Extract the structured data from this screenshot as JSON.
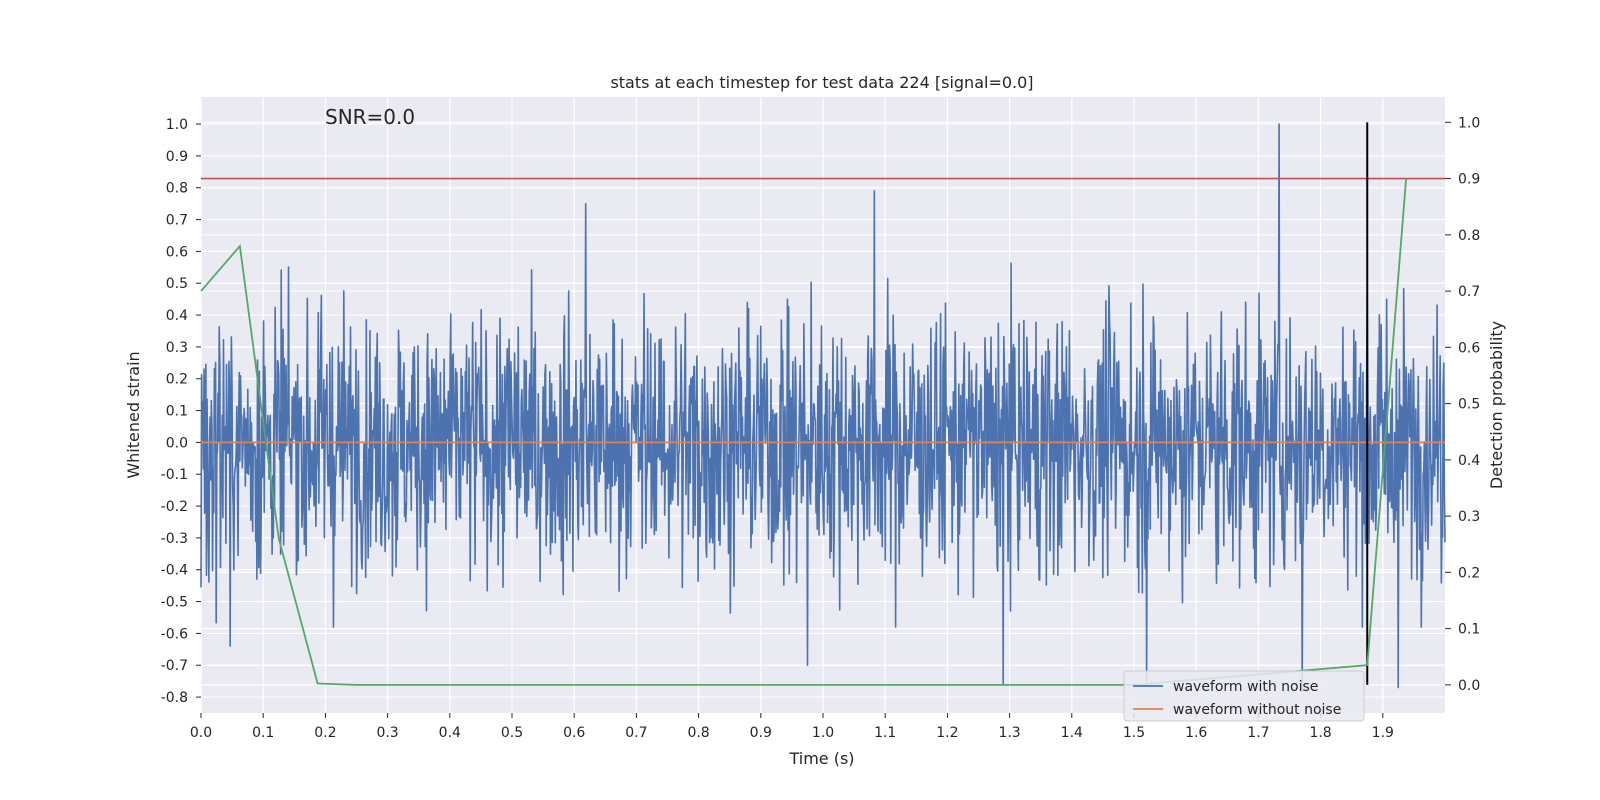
{
  "chart_data": {
    "type": "line",
    "title": "stats at each timestep for test data 224 [signal=0.0]",
    "xlabel": "Time (s)",
    "ylabel": "Whitened strain",
    "y2label": "Detection probability",
    "annotation": "SNR=0.0",
    "xlim": [
      0.0,
      2.0
    ],
    "ylim": [
      -0.85,
      1.085
    ],
    "y2lim": [
      -0.05,
      1.045
    ],
    "x_ticks": [
      0.0,
      0.1,
      0.2,
      0.3,
      0.4,
      0.5,
      0.6,
      0.7,
      0.8,
      0.9,
      1.0,
      1.1,
      1.2,
      1.3,
      1.4,
      1.5,
      1.6,
      1.7,
      1.8,
      1.9
    ],
    "x_tick_labels": [
      "0.0",
      "0.1",
      "0.2",
      "0.3",
      "0.4",
      "0.5",
      "0.6",
      "0.7",
      "0.8",
      "0.9",
      "1.0",
      "1.1",
      "1.2",
      "1.3",
      "1.4",
      "1.5",
      "1.6",
      "1.7",
      "1.8",
      "1.9"
    ],
    "y_ticks": [
      1.0,
      0.9,
      0.8,
      0.7,
      0.6,
      0.5,
      0.4,
      0.3,
      0.2,
      0.1,
      0.0,
      -0.1,
      -0.2,
      -0.3,
      -0.4,
      -0.5,
      -0.6,
      -0.7,
      -0.8
    ],
    "y_tick_labels": [
      "1.0",
      "0.9",
      "0.8",
      "0.7",
      "0.6",
      "0.5",
      "0.4",
      "0.3",
      "0.2",
      "0.1",
      "0.0",
      "-0.1",
      "-0.2",
      "-0.3",
      "-0.4",
      "-0.5",
      "-0.6",
      "-0.7",
      "-0.8"
    ],
    "y2_ticks": [
      1.0,
      0.9,
      0.8,
      0.7,
      0.6,
      0.5,
      0.4,
      0.3,
      0.2,
      0.1,
      0.0
    ],
    "y2_tick_labels": [
      "1.0",
      "0.9",
      "0.8",
      "0.7",
      "0.6",
      "0.5",
      "0.4",
      "0.3",
      "0.2",
      "0.1",
      "0.0"
    ],
    "series": [
      {
        "name": "waveform with noise",
        "color": "#4c72b0",
        "axis": "left",
        "kind": "noise",
        "n_samples": 2048,
        "approx_std": 0.2,
        "peaks": [
          {
            "x": 1.733,
            "y": 1.0
          },
          {
            "x": 1.083,
            "y": 0.79
          },
          {
            "x": 0.618,
            "y": 0.75
          },
          {
            "x": 0.975,
            "y": -0.7
          },
          {
            "x": 1.925,
            "y": -0.77
          },
          {
            "x": 1.52,
            "y": -0.75
          },
          {
            "x": 0.047,
            "y": -0.64
          },
          {
            "x": 1.77,
            "y": -0.78
          },
          {
            "x": 1.29,
            "y": -0.76
          }
        ]
      },
      {
        "name": "waveform without noise",
        "color": "#dd8452",
        "axis": "left",
        "x": [
          0.0,
          2.0
        ],
        "y": [
          0.0,
          0.0
        ]
      },
      {
        "name": "detection probability",
        "color": "#55a868",
        "axis": "right",
        "x": [
          0.0,
          0.0625,
          0.125,
          0.1875,
          0.25,
          1.5,
          1.875,
          1.9375
        ],
        "y": [
          0.7,
          0.78,
          0.26,
          0.0025,
          0.0,
          0.0,
          0.035,
          0.9
        ]
      }
    ],
    "hlines": [
      {
        "axis": "right",
        "y": 0.9,
        "color": "#c44e52"
      }
    ],
    "vlines": [
      {
        "x": 1.875,
        "axis": "right",
        "ymin": 0.0,
        "ymax": 1.0,
        "color": "#000000"
      }
    ],
    "legend": {
      "location": "lower-right",
      "entries": [
        {
          "label": "waveform with noise",
          "color": "#4c72b0"
        },
        {
          "label": "waveform without noise",
          "color": "#dd8452"
        }
      ]
    },
    "colors": {
      "plot_background": "#eaeaf2",
      "grid": "#ffffff",
      "text": "#262626"
    }
  }
}
